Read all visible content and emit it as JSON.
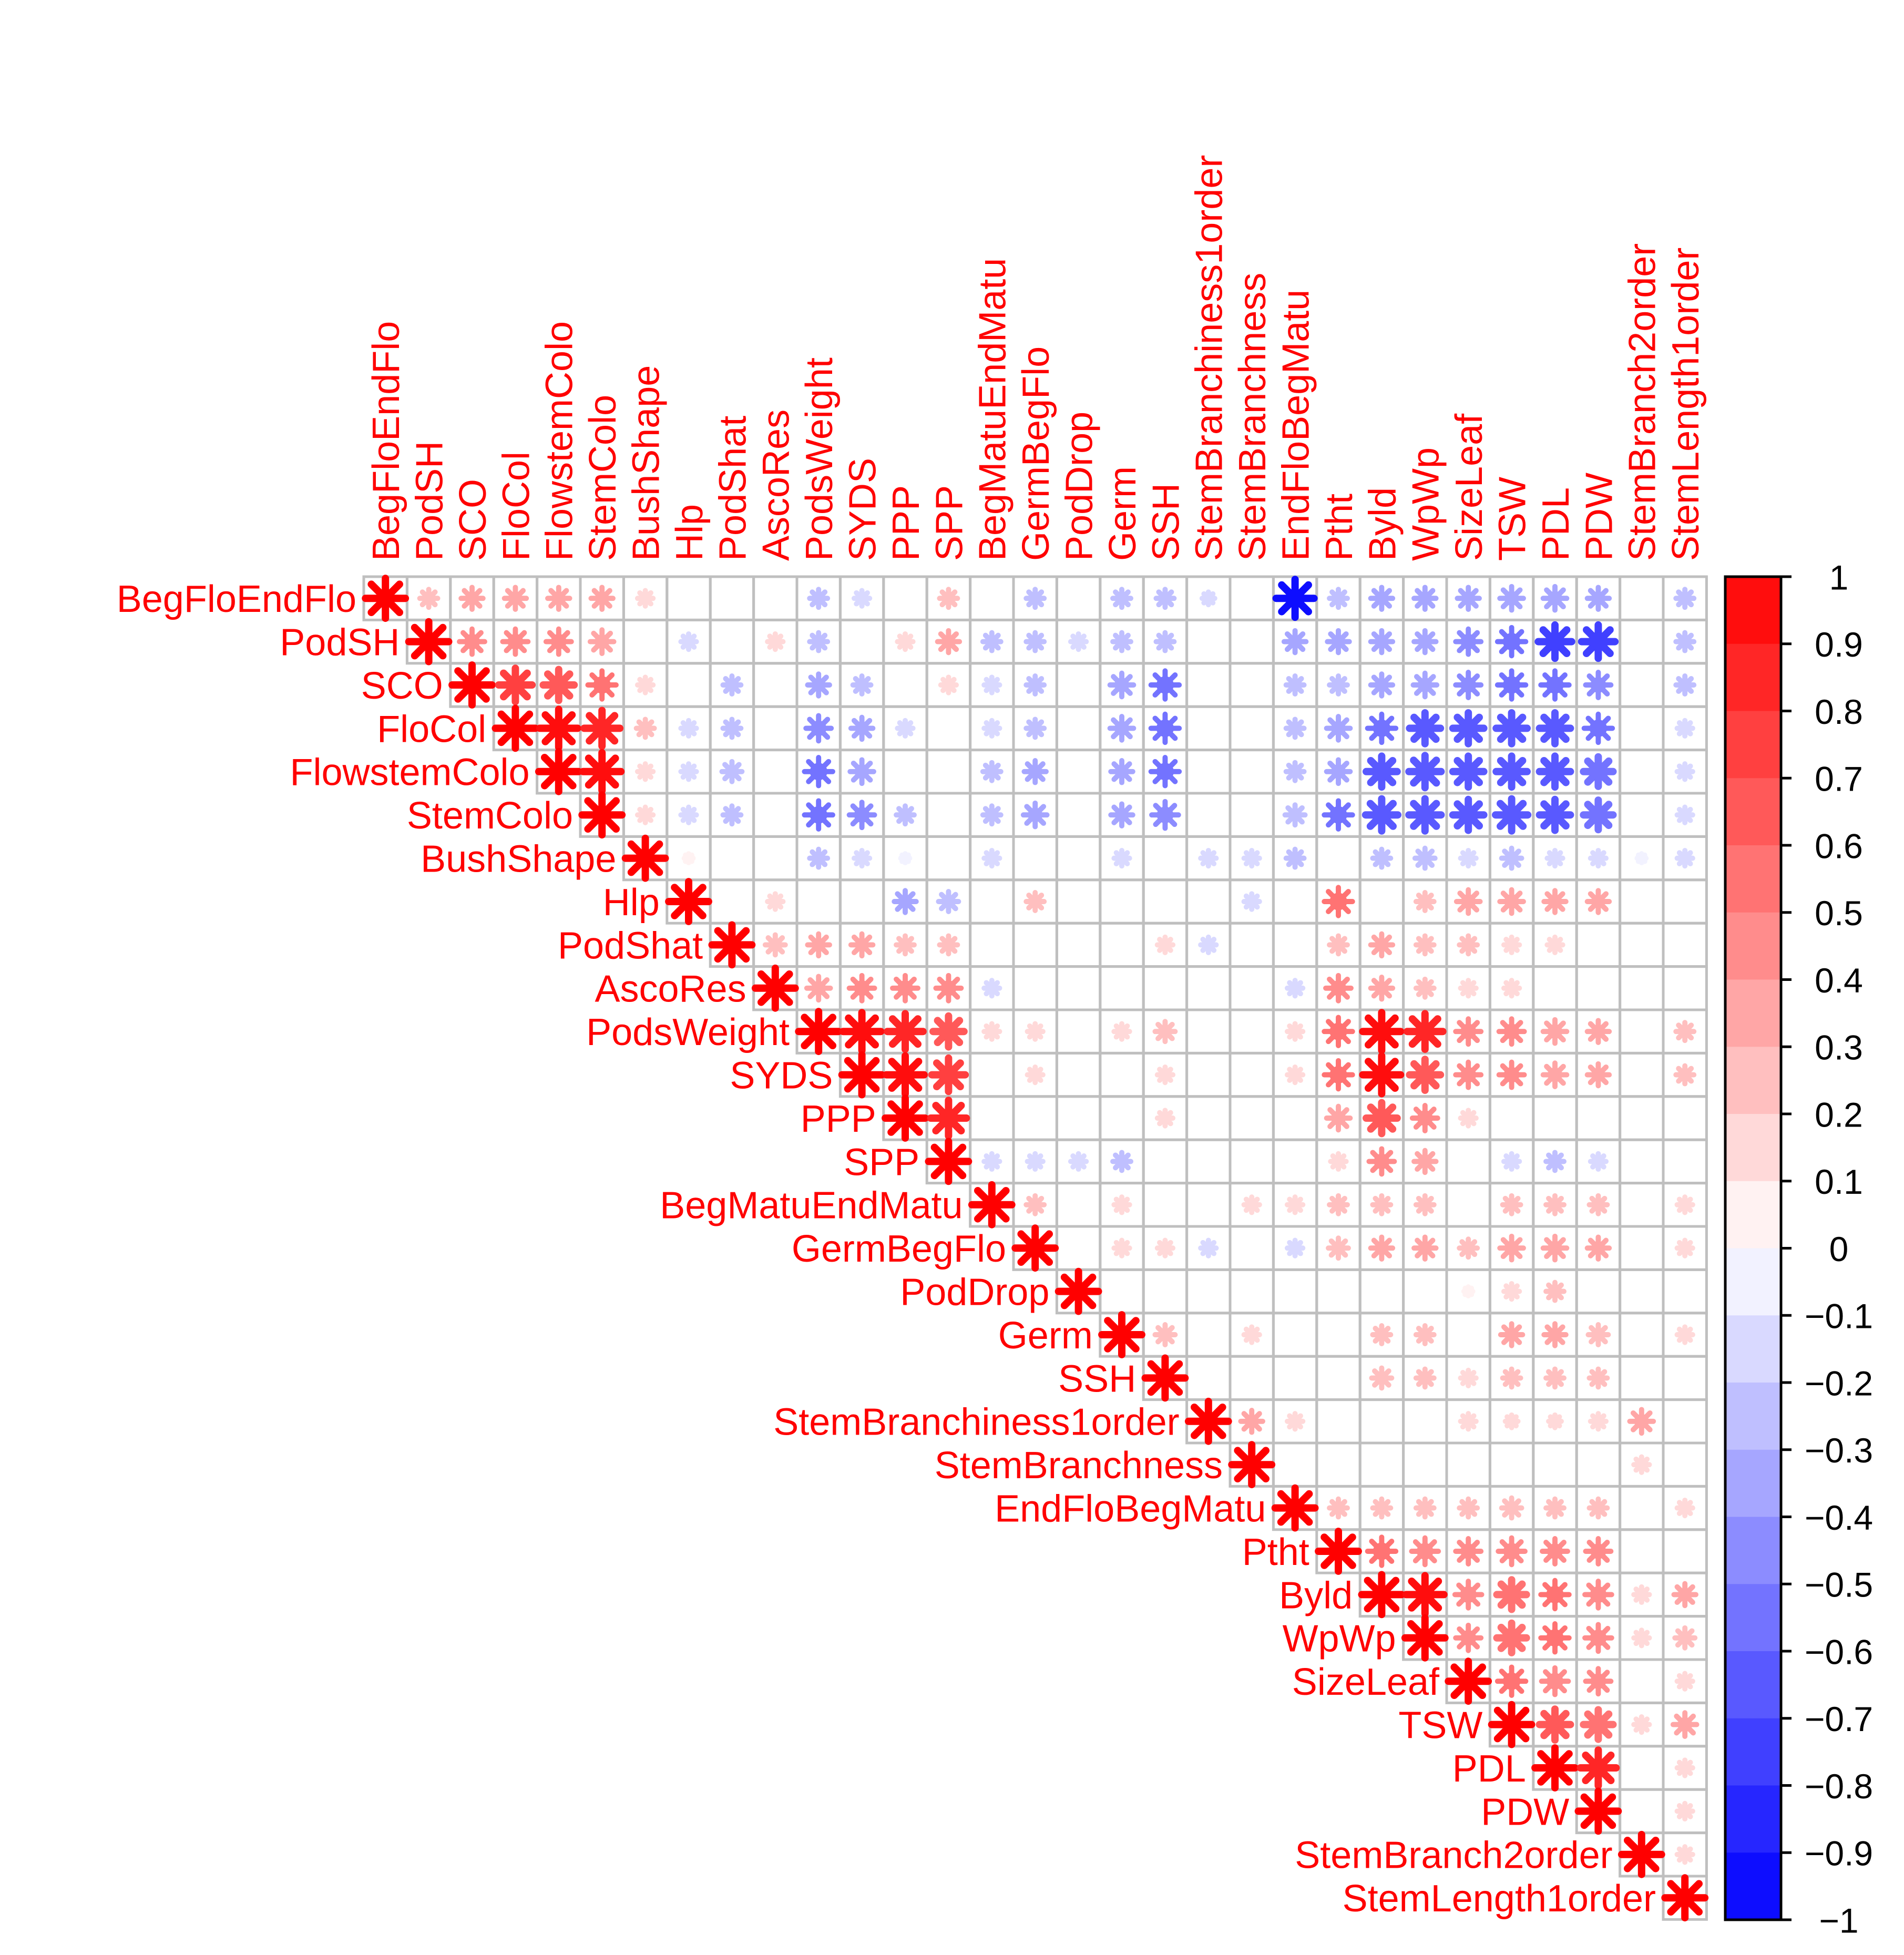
{
  "chart_data": {
    "type": "heatmap",
    "variant": "correlation-matrix-upper-triangle",
    "glyph": "star",
    "title": "",
    "xlabel": "",
    "ylabel": "",
    "grid": true,
    "legend": {
      "placement": "right",
      "type": "colorbar"
    },
    "colors": {
      "label": "#ff0000",
      "positive": "#ff0000",
      "negative": "#0000ff",
      "zero": "#ffffff",
      "grid": "#bfbfbf"
    },
    "variables": [
      "BegFloEndFlo",
      "PodSH",
      "SCO",
      "FloCol",
      "FlowstemColo",
      "StemColo",
      "BushShape",
      "Hlp",
      "PodShat",
      "AscoRes",
      "PodsWeight",
      "SYDS",
      "PPP",
      "SPP",
      "BegMatuEndMatu",
      "GermBegFlo",
      "PodDrop",
      "Germ",
      "SSH",
      "StemBranchiness1order",
      "StemBranchness",
      "EndFloBegMatu",
      "Ptht",
      "Byld",
      "WpWp",
      "SizeLeaf",
      "TSW",
      "PDL",
      "PDW",
      "StemBranch2order",
      "StemLength1order"
    ],
    "colorbar": {
      "range": [
        -1,
        1
      ],
      "ticks": [
        1,
        0.9,
        0.8,
        0.7,
        0.6,
        0.5,
        0.4,
        0.3,
        0.2,
        0.1,
        0,
        -0.1,
        -0.2,
        -0.3,
        -0.4,
        -0.5,
        -0.6,
        -0.7,
        -0.8,
        -0.9,
        -1
      ],
      "tick_labels": [
        "1",
        "0.9",
        "0.8",
        "0.7",
        "0.6",
        "0.5",
        "0.4",
        "0.3",
        "0.2",
        "0.1",
        "0",
        "−0.1",
        "−0.2",
        "−0.3",
        "−0.4",
        "−0.5",
        "−0.6",
        "−0.7",
        "−0.8",
        "−0.9",
        "−1"
      ]
    },
    "correlations": [
      [
        1,
        0.2,
        0.3,
        0.3,
        0.3,
        0.3,
        0.15,
        0,
        0,
        0,
        -0.2,
        -0.15,
        0,
        0.2,
        0,
        -0.2,
        0,
        -0.2,
        -0.2,
        -0.1,
        0,
        -0.9,
        -0.2,
        -0.3,
        -0.3,
        -0.3,
        -0.35,
        -0.35,
        -0.3,
        0,
        -0.2
      ],
      [
        0.2,
        1,
        0.4,
        0.4,
        0.4,
        0.35,
        0,
        -0.15,
        0,
        0.15,
        -0.2,
        0,
        0.15,
        0.3,
        -0.2,
        -0.2,
        -0.15,
        -0.2,
        -0.2,
        0,
        0,
        -0.3,
        -0.3,
        -0.3,
        -0.3,
        -0.4,
        -0.5,
        -0.7,
        -0.7,
        0,
        -0.2
      ],
      [
        0.3,
        0.4,
        1,
        0.7,
        0.6,
        0.5,
        0.15,
        0,
        -0.2,
        0,
        -0.3,
        -0.2,
        0,
        0.15,
        -0.15,
        -0.2,
        0,
        -0.35,
        -0.5,
        0,
        0,
        -0.2,
        -0.2,
        -0.3,
        -0.35,
        -0.4,
        -0.5,
        -0.5,
        -0.4,
        0,
        -0.2
      ],
      [
        0.3,
        0.4,
        0.7,
        1,
        0.9,
        0.8,
        0.2,
        -0.15,
        -0.2,
        0,
        -0.4,
        -0.3,
        -0.15,
        0,
        -0.15,
        -0.2,
        0,
        -0.35,
        -0.5,
        0,
        0,
        -0.2,
        -0.35,
        -0.5,
        -0.6,
        -0.6,
        -0.6,
        -0.6,
        -0.5,
        0,
        -0.15
      ],
      [
        0.3,
        0.4,
        0.6,
        0.9,
        1,
        0.9,
        0.15,
        -0.15,
        -0.25,
        0,
        -0.5,
        -0.35,
        0,
        0,
        -0.2,
        -0.3,
        0,
        -0.3,
        -0.5,
        0,
        0,
        -0.2,
        -0.35,
        -0.6,
        -0.65,
        -0.6,
        -0.6,
        -0.6,
        -0.55,
        0,
        -0.15
      ],
      [
        0.3,
        0.35,
        0.5,
        0.8,
        0.9,
        1,
        0.15,
        -0.15,
        -0.2,
        0,
        -0.5,
        -0.4,
        -0.2,
        0,
        -0.2,
        -0.35,
        0,
        -0.3,
        -0.45,
        0,
        0,
        -0.25,
        -0.5,
        -0.65,
        -0.65,
        -0.6,
        -0.65,
        -0.6,
        -0.55,
        0,
        -0.15
      ],
      [
        0.15,
        0,
        0.15,
        0.2,
        0.15,
        0.15,
        1,
        0.05,
        0,
        0,
        -0.2,
        -0.15,
        -0.05,
        0,
        -0.15,
        0,
        0,
        -0.15,
        0,
        -0.15,
        -0.15,
        -0.2,
        0,
        -0.2,
        -0.25,
        -0.15,
        -0.25,
        -0.15,
        -0.15,
        -0.05,
        -0.15
      ],
      [
        0,
        -0.15,
        0,
        -0.15,
        -0.15,
        -0.15,
        0.05,
        1,
        0,
        0.15,
        0,
        0,
        -0.3,
        -0.25,
        0,
        0.2,
        0,
        0,
        0,
        0,
        -0.15,
        0,
        0.5,
        0,
        0.2,
        0.35,
        0.35,
        0.3,
        0.3,
        0,
        0
      ],
      [
        0,
        0,
        -0.2,
        -0.2,
        -0.25,
        -0.2,
        0,
        0,
        1,
        0.25,
        0.3,
        0.3,
        0.2,
        0.2,
        0,
        0,
        0,
        0,
        0.15,
        -0.15,
        0,
        0,
        0.2,
        0.3,
        0.2,
        0.2,
        0.15,
        0.15,
        0,
        0,
        0
      ],
      [
        0,
        0.15,
        0,
        0,
        0,
        0,
        0,
        0.15,
        0.25,
        1,
        0.35,
        0.4,
        0.4,
        0.4,
        -0.15,
        0,
        0,
        0,
        0,
        0,
        0,
        -0.15,
        0.4,
        0.3,
        0.2,
        0.15,
        0.15,
        0,
        0,
        0,
        0
      ],
      [
        -0.2,
        -0.2,
        -0.3,
        -0.4,
        -0.5,
        -0.5,
        -0.2,
        0,
        0.3,
        0.35,
        1,
        0.9,
        0.8,
        0.6,
        0.15,
        0.15,
        0,
        0.15,
        0.25,
        0,
        0,
        0.15,
        0.5,
        0.9,
        0.8,
        0.4,
        0.4,
        0.35,
        0.3,
        0,
        0.2
      ],
      [
        -0.15,
        0,
        -0.2,
        -0.3,
        -0.35,
        -0.4,
        -0.15,
        0,
        0.3,
        0.4,
        0.9,
        1,
        0.9,
        0.7,
        0,
        0.15,
        0,
        0,
        0.15,
        0,
        0,
        0.15,
        0.5,
        0.9,
        0.6,
        0.4,
        0.4,
        0.35,
        0.3,
        0,
        0.2
      ],
      [
        0,
        0.15,
        0,
        -0.15,
        0,
        -0.2,
        -0.05,
        -0.3,
        0.2,
        0.4,
        0.8,
        0.9,
        1,
        0.8,
        0,
        0,
        0,
        0,
        0.15,
        0,
        0,
        0,
        0.35,
        0.6,
        0.4,
        0.15,
        0,
        0,
        0,
        0,
        0
      ],
      [
        0.2,
        0.3,
        0.15,
        0,
        0,
        0,
        0,
        -0.25,
        0.2,
        0.4,
        0.6,
        0.7,
        0.8,
        1,
        -0.15,
        -0.15,
        -0.15,
        -0.2,
        0,
        0,
        0,
        0,
        0.15,
        0.4,
        0.3,
        0,
        -0.15,
        -0.2,
        -0.15,
        0,
        0
      ],
      [
        0,
        -0.2,
        -0.15,
        -0.15,
        -0.2,
        -0.2,
        -0.15,
        0,
        0,
        -0.15,
        0.15,
        0,
        0,
        -0.15,
        1,
        0.2,
        0,
        0.15,
        0,
        0,
        0.15,
        0.15,
        0.2,
        0.2,
        0.2,
        0,
        0.2,
        0.2,
        0.2,
        0,
        0.15
      ],
      [
        -0.2,
        -0.2,
        -0.2,
        -0.2,
        -0.3,
        -0.35,
        0,
        0.2,
        0,
        0,
        0.15,
        0.15,
        0,
        -0.15,
        0.2,
        1,
        0,
        0.15,
        0.15,
        -0.15,
        0,
        -0.15,
        0.25,
        0.3,
        0.3,
        0.2,
        0.35,
        0.35,
        0.3,
        0,
        0.15
      ],
      [
        0,
        -0.15,
        0,
        0,
        0,
        0,
        0,
        0,
        0,
        0,
        0,
        0,
        0,
        -0.15,
        0,
        0,
        1,
        0,
        0,
        0,
        0,
        0,
        0,
        0,
        0,
        0.05,
        0.15,
        0.2,
        0,
        0,
        0
      ],
      [
        -0.2,
        -0.2,
        -0.35,
        -0.35,
        -0.3,
        -0.3,
        -0.15,
        0,
        0,
        0,
        0.15,
        0,
        0,
        -0.2,
        0.15,
        0.15,
        0,
        1,
        0.25,
        0,
        0.15,
        0,
        0,
        0.2,
        0.2,
        0,
        0.3,
        0.3,
        0.25,
        0,
        0.15
      ],
      [
        -0.2,
        -0.2,
        -0.5,
        -0.5,
        -0.5,
        -0.45,
        0,
        0,
        0.15,
        0,
        0.25,
        0.15,
        0.15,
        0,
        0,
        0.15,
        0,
        0.25,
        1,
        0,
        0,
        0,
        0,
        0.25,
        0.2,
        0.15,
        0.2,
        0.2,
        0.2,
        0,
        0
      ],
      [
        -0.1,
        0,
        0,
        0,
        0,
        0,
        -0.15,
        0,
        -0.15,
        0,
        0,
        0,
        0,
        0,
        0,
        -0.15,
        0,
        0,
        0,
        1,
        0.3,
        0.15,
        0,
        0,
        0,
        0.15,
        0.1,
        0.1,
        0.15,
        0.35,
        0
      ],
      [
        0,
        0,
        0,
        0,
        0,
        0,
        -0.15,
        -0.15,
        0,
        0,
        0,
        0,
        0,
        0,
        0.15,
        0,
        0,
        0.15,
        0,
        0.3,
        1,
        0,
        0,
        0,
        0,
        0,
        0,
        0,
        0,
        0.15,
        0
      ],
      [
        -0.9,
        -0.3,
        -0.2,
        -0.2,
        -0.2,
        -0.25,
        -0.2,
        0,
        0,
        -0.15,
        0.15,
        0.15,
        0,
        0,
        0.15,
        -0.15,
        0,
        0,
        0,
        0.15,
        0,
        1,
        0.2,
        0.2,
        0.2,
        0.2,
        0.25,
        0.2,
        0.2,
        0,
        0.15
      ],
      [
        -0.2,
        -0.3,
        -0.2,
        -0.35,
        -0.35,
        -0.5,
        0,
        0.5,
        0.2,
        0.4,
        0.5,
        0.5,
        0.35,
        0.15,
        0.2,
        0.25,
        0,
        0,
        0,
        0,
        0,
        0.2,
        1,
        0.5,
        0.45,
        0.4,
        0.45,
        0.4,
        0.4,
        0,
        0
      ],
      [
        -0.3,
        -0.3,
        -0.3,
        -0.5,
        -0.6,
        -0.65,
        -0.2,
        0,
        0.3,
        0.3,
        0.9,
        0.9,
        0.6,
        0.4,
        0.2,
        0.3,
        0,
        0.2,
        0.25,
        0,
        0,
        0.2,
        0.5,
        1,
        0.9,
        0.45,
        0.55,
        0.5,
        0.45,
        0.15,
        0.3
      ],
      [
        -0.3,
        -0.3,
        -0.35,
        -0.6,
        -0.65,
        -0.65,
        -0.25,
        0.2,
        0.2,
        0.2,
        0.8,
        0.6,
        0.4,
        0.3,
        0.2,
        0.3,
        0,
        0.2,
        0.2,
        0,
        0,
        0.2,
        0.45,
        0.9,
        1,
        0.4,
        0.55,
        0.5,
        0.45,
        0.15,
        0.25
      ],
      [
        -0.3,
        -0.4,
        -0.4,
        -0.6,
        -0.6,
        -0.6,
        -0.15,
        0.35,
        0.2,
        0.15,
        0.4,
        0.4,
        0.15,
        0,
        0,
        0.2,
        0.05,
        0,
        0.15,
        0.15,
        0,
        0.2,
        0.4,
        0.45,
        0.4,
        1,
        0.5,
        0.45,
        0.4,
        0,
        0.15
      ],
      [
        -0.35,
        -0.5,
        -0.5,
        -0.6,
        -0.6,
        -0.65,
        -0.25,
        0.35,
        0.15,
        0.15,
        0.4,
        0.4,
        0,
        -0.15,
        0.2,
        0.35,
        0.15,
        0.3,
        0.2,
        0.1,
        0,
        0.25,
        0.45,
        0.55,
        0.55,
        0.5,
        1,
        0.6,
        0.55,
        0.15,
        0.35
      ],
      [
        -0.35,
        -0.7,
        -0.5,
        -0.6,
        -0.6,
        -0.6,
        -0.15,
        0.3,
        0.15,
        0,
        0.35,
        0.35,
        0,
        -0.2,
        0.2,
        0.35,
        0.2,
        0.3,
        0.2,
        0.1,
        0,
        0.2,
        0.4,
        0.5,
        0.5,
        0.45,
        0.6,
        1,
        0.8,
        0,
        0.15
      ],
      [
        -0.3,
        -0.7,
        -0.4,
        -0.5,
        -0.55,
        -0.55,
        -0.15,
        0.3,
        0,
        0,
        0.3,
        0.3,
        0,
        -0.15,
        0.2,
        0.3,
        0,
        0.25,
        0.2,
        0.15,
        0,
        0.2,
        0.4,
        0.45,
        0.45,
        0.4,
        0.55,
        0.8,
        1,
        0,
        0.15
      ],
      [
        0,
        0,
        0,
        0,
        0,
        0,
        -0.05,
        0,
        0,
        0,
        0,
        0,
        0,
        0,
        0,
        0,
        0,
        0,
        0,
        0.35,
        0.15,
        0,
        0,
        0.15,
        0.15,
        0,
        0.15,
        0,
        0,
        1,
        0.15
      ],
      [
        -0.2,
        -0.2,
        -0.2,
        -0.15,
        -0.15,
        -0.15,
        -0.15,
        0,
        0,
        0,
        0.2,
        0.2,
        0,
        0,
        0.15,
        0.15,
        0,
        0.15,
        0,
        0,
        0,
        0.15,
        0,
        0.3,
        0.25,
        0.15,
        0.35,
        0.15,
        0.15,
        0.15,
        1
      ]
    ]
  }
}
